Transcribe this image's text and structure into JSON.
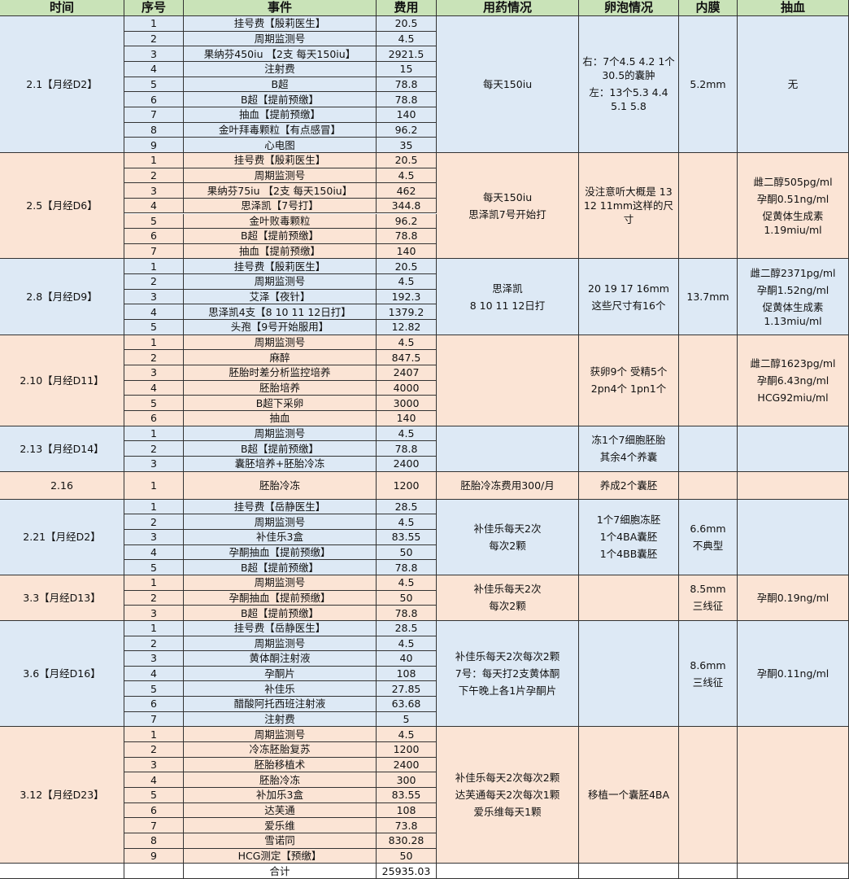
{
  "header": [
    "时间",
    "序号",
    "事件",
    "费用",
    "用药情况",
    "卵泡情况",
    "内膜",
    "抽血"
  ],
  "groups": [
    {
      "date": "2.1【月经D2】",
      "items": [
        {
          "no": 1,
          "event": "挂号费【殷莉医生】",
          "cost": 20.5
        },
        {
          "no": 2,
          "event": "周期监测号",
          "cost": 4.5
        },
        {
          "no": 3,
          "event": "果纳芬450iu 【2支 每天150iu】",
          "cost": 2921.5
        },
        {
          "no": 4,
          "event": "注射费",
          "cost": 15
        },
        {
          "no": 5,
          "event": "B超",
          "cost": 78.8
        },
        {
          "no": 6,
          "event": "B超【提前预缴】",
          "cost": 78.8
        },
        {
          "no": 7,
          "event": "抽血【提前预缴】",
          "cost": 140
        },
        {
          "no": 8,
          "event": "金叶拜毒颗粒【有点感冒】",
          "cost": 96.2
        },
        {
          "no": 9,
          "event": "心电图",
          "cost": 35
        }
      ],
      "medication": [
        "每天150iu"
      ],
      "follicle": [
        "右：7个4.5 4.2 1个30.5的囊肿",
        "左：13个5.3 4.4 5.1 5.8"
      ],
      "endometrium": [
        "5.2mm"
      ],
      "blood": [
        "无"
      ]
    },
    {
      "date": "2.5【月经D6】",
      "items": [
        {
          "no": 1,
          "event": "挂号费【殷莉医生】",
          "cost": 20.5
        },
        {
          "no": 2,
          "event": "周期监测号",
          "cost": 4.5
        },
        {
          "no": 3,
          "event": "果纳芬75iu 【2支 每天150iu】",
          "cost": 462
        },
        {
          "no": 4,
          "event": "思泽凯【7号打】",
          "cost": 344.8
        },
        {
          "no": 5,
          "event": "金叶败毒颗粒",
          "cost": 96.2
        },
        {
          "no": 6,
          "event": "B超【提前预缴】",
          "cost": 78.8
        },
        {
          "no": 7,
          "event": "抽血【提前预缴】",
          "cost": 140
        }
      ],
      "medication": [
        "每天150iu",
        "思泽凯7号开始打"
      ],
      "follicle": [
        "没注意听大概是 13 12 11mm这样的尺寸"
      ],
      "blood": [
        "雌二醇505pg/ml",
        "孕酮0.51ng/ml",
        "促黄体生成素 1.19miu/ml"
      ]
    },
    {
      "date": "2.8【月经D9】",
      "items": [
        {
          "no": 1,
          "event": "挂号费【殷莉医生】",
          "cost": 20.5
        },
        {
          "no": 2,
          "event": "周期监测号",
          "cost": 4.5
        },
        {
          "no": 3,
          "event": "艾泽【夜针】",
          "cost": 192.3
        },
        {
          "no": 4,
          "event": "思泽凯4支【8 10 11 12日打】",
          "cost": 1379.2
        },
        {
          "no": 5,
          "event": "头孢【9号开始服用】",
          "cost": 12.82
        }
      ],
      "medication": [
        "思泽凯",
        "8 10 11 12日打"
      ],
      "follicle": [
        "20 19 17 16mm",
        "这些尺寸有16个"
      ],
      "endometrium": [
        "13.7mm"
      ],
      "blood": [
        "雌二醇2371pg/ml",
        "孕酮1.52ng/ml",
        "促黄体生成素 1.13miu/ml"
      ]
    },
    {
      "date": "2.10【月经D11】",
      "items": [
        {
          "no": 1,
          "event": "周期监测号",
          "cost": 4.5
        },
        {
          "no": 2,
          "event": "麻醉",
          "cost": 847.5
        },
        {
          "no": 3,
          "event": "胚胎时差分析监控培养",
          "cost": 2407
        },
        {
          "no": 4,
          "event": "胚胎培养",
          "cost": 4000
        },
        {
          "no": 5,
          "event": "B超下采卵",
          "cost": 3000
        },
        {
          "no": 6,
          "event": "抽血",
          "cost": 140
        }
      ],
      "follicle": [
        "获卵9个 受精5个",
        "2pn4个 1pn1个"
      ],
      "blood": [
        "雌二醇1623pg/ml",
        "孕酮6.43ng/ml",
        "HCG92miu/ml"
      ]
    },
    {
      "date": "2.13【月经D14】",
      "items": [
        {
          "no": 1,
          "event": "周期监测号",
          "cost": 4.5
        },
        {
          "no": 2,
          "event": "B超【提前预缴】",
          "cost": 78.8
        },
        {
          "no": 3,
          "event": "囊胚培养+胚胎冷冻",
          "cost": 2400
        }
      ],
      "follicle": [
        "冻1个7细胞胚胎",
        "其余4个养囊"
      ]
    },
    {
      "date": "2.16",
      "items": [
        {
          "no": 1,
          "event": "胚胎冷冻",
          "cost": 1200
        }
      ],
      "medication": [
        "胚胎冷冻费用300/月"
      ],
      "follicle": [
        "养成2个囊胚"
      ]
    },
    {
      "date": "2.21【月经D2】",
      "items": [
        {
          "no": 1,
          "event": "挂号费【岳静医生】",
          "cost": 28.5
        },
        {
          "no": 2,
          "event": "周期监测号",
          "cost": 4.5
        },
        {
          "no": 3,
          "event": "补佳乐3盒",
          "cost": 83.55
        },
        {
          "no": 4,
          "event": "孕酮抽血【提前预缴】",
          "cost": 50
        },
        {
          "no": 5,
          "event": "B超【提前预缴】",
          "cost": 78.8
        }
      ],
      "medication": [
        "补佳乐每天2次",
        "每次2颗"
      ],
      "follicle": [
        "1个7细胞冻胚",
        "1个4BA囊胚",
        "1个4BB囊胚"
      ],
      "endometrium": [
        "6.6mm",
        "不典型"
      ]
    },
    {
      "date": "3.3【月经D13】",
      "items": [
        {
          "no": 1,
          "event": "周期监测号",
          "cost": 4.5
        },
        {
          "no": 2,
          "event": "孕酮抽血【提前预缴】",
          "cost": 50
        },
        {
          "no": 3,
          "event": "B超【提前预缴】",
          "cost": 78.8
        }
      ],
      "medication": [
        "补佳乐每天2次",
        "每次2颗"
      ],
      "endometrium": [
        "8.5mm",
        "三线征"
      ],
      "blood": [
        "孕酮0.19ng/ml"
      ]
    },
    {
      "date": "3.6【月经D16】",
      "items": [
        {
          "no": 1,
          "event": "挂号费【岳静医生】",
          "cost": 28.5
        },
        {
          "no": 2,
          "event": "周期监测号",
          "cost": 4.5
        },
        {
          "no": 3,
          "event": "黄体酮注射液",
          "cost": 40
        },
        {
          "no": 4,
          "event": "孕酮片",
          "cost": 108
        },
        {
          "no": 5,
          "event": "补佳乐",
          "cost": 27.85
        },
        {
          "no": 6,
          "event": "醋酸阿托西班注射液",
          "cost": 63.68
        },
        {
          "no": 7,
          "event": "注射费",
          "cost": 5
        }
      ],
      "medication": [
        "补佳乐每天2次每次2颗",
        "7号：每天打2支黄体酮",
        "下午晚上各1片孕酮片"
      ],
      "endometrium": [
        "8.6mm",
        "三线征"
      ],
      "blood": [
        "孕酮0.11ng/ml"
      ]
    },
    {
      "date": "3.12【月经D23】",
      "items": [
        {
          "no": 1,
          "event": "周期监测号",
          "cost": 4.5
        },
        {
          "no": 2,
          "event": "冷冻胚胎复苏",
          "cost": 1200
        },
        {
          "no": 3,
          "event": "胚胎移植术",
          "cost": 2400
        },
        {
          "no": 4,
          "event": "胚胎冷冻",
          "cost": 300
        },
        {
          "no": 5,
          "event": "补加乐3盒",
          "cost": 83.55
        },
        {
          "no": 6,
          "event": "达芙通",
          "cost": 108
        },
        {
          "no": 7,
          "event": "爱乐维",
          "cost": 73.8
        },
        {
          "no": 8,
          "event": "雪诺同",
          "cost": 830.28
        },
        {
          "no": 9,
          "event": "HCG测定【预缴】",
          "cost": 50
        }
      ],
      "medication": [
        "补佳乐每天2次每次2颗",
        "达芙通每天2次每次1颗",
        "爱乐维每天1颗"
      ],
      "follicle": [
        "移植一个囊胚4BA"
      ]
    }
  ],
  "total": {
    "label": "合计",
    "cost": 25935.03
  }
}
